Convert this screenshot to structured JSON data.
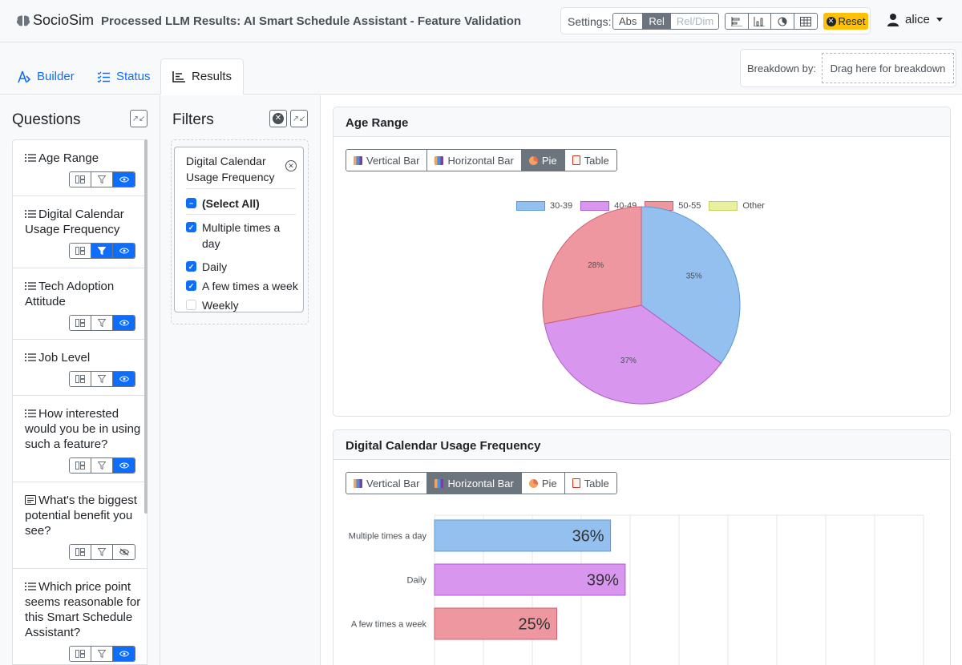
{
  "navbar": {
    "brand": "SocioSim",
    "title": "Processed LLM Results: AI Smart Schedule Assistant - Feature Validation",
    "settings_label": "Settings:",
    "mode_options": [
      "Abs",
      "Rel",
      "Rel/Dim"
    ],
    "mode_active": "Rel",
    "reset_label": "Reset",
    "user": "alice"
  },
  "tabs": [
    {
      "label": "Builder",
      "icon": "builder-icon"
    },
    {
      "label": "Status",
      "icon": "list-check-icon"
    },
    {
      "label": "Results",
      "icon": "bar-chart-icon"
    }
  ],
  "breakdown": {
    "label": "Breakdown by:",
    "placeholder": "Drag here for breakdown"
  },
  "questions": {
    "title": "Questions",
    "items": [
      {
        "label": "Age Range",
        "icon": "list-icon",
        "filter_active": false,
        "visible": true
      },
      {
        "label": "Digital Calendar Usage Frequency",
        "icon": "list-icon",
        "filter_active": true,
        "visible": true
      },
      {
        "label": "Tech Adoption Attitude",
        "icon": "list-icon",
        "filter_active": false,
        "visible": true
      },
      {
        "label": "Job Level",
        "icon": "list-icon",
        "filter_active": false,
        "visible": true
      },
      {
        "label": "How interested would you be in using such a feature?",
        "icon": "list-icon",
        "filter_active": false,
        "visible": true
      },
      {
        "label": "What's the biggest potential benefit you see?",
        "icon": "text-icon",
        "filter_active": false,
        "visible": false
      },
      {
        "label": "Which price point seems reasonable for this Smart Schedule Assistant?",
        "icon": "list-icon",
        "filter_active": false,
        "visible": true
      }
    ]
  },
  "filters": {
    "title": "Filters",
    "card": {
      "name": "Digital Calendar Usage Frequency",
      "select_all": "(Select All)",
      "options": [
        {
          "label": "Multiple times a day",
          "checked": true
        },
        {
          "label": "Daily",
          "checked": true
        },
        {
          "label": "A few times a week",
          "checked": true
        },
        {
          "label": "Weekly",
          "checked": false
        }
      ]
    }
  },
  "chart_tabs": [
    "Vertical Bar",
    "Horizontal Bar",
    "Pie",
    "Table"
  ],
  "results": {
    "age_card_title": "Age Range",
    "freq_card_title": "Digital Calendar Usage Frequency"
  },
  "colors": {
    "blue": "#93c0ee",
    "purple": "#d896ee",
    "red": "#ee97a0",
    "yellow": "#e8f0a0",
    "accent": "#0d6efd",
    "warning": "#ffc107"
  },
  "chart_data": [
    {
      "type": "pie",
      "title": "Age Range",
      "categories": [
        "30-39",
        "40-49",
        "50-55",
        "Other"
      ],
      "legend": [
        "30-39",
        "40-49",
        "50-55",
        "Other"
      ],
      "values": [
        35,
        37,
        28,
        0
      ],
      "labels": [
        "35%",
        "37%",
        "28%",
        ""
      ],
      "legend_position": "top"
    },
    {
      "type": "bar",
      "orientation": "horizontal",
      "title": "Digital Calendar Usage Frequency",
      "categories": [
        "Multiple times a day",
        "Daily",
        "A few times a week"
      ],
      "values": [
        36,
        39,
        25
      ],
      "labels": [
        "36%",
        "39%",
        "25%"
      ],
      "xlim": [
        0,
        100
      ],
      "grid": true
    }
  ]
}
